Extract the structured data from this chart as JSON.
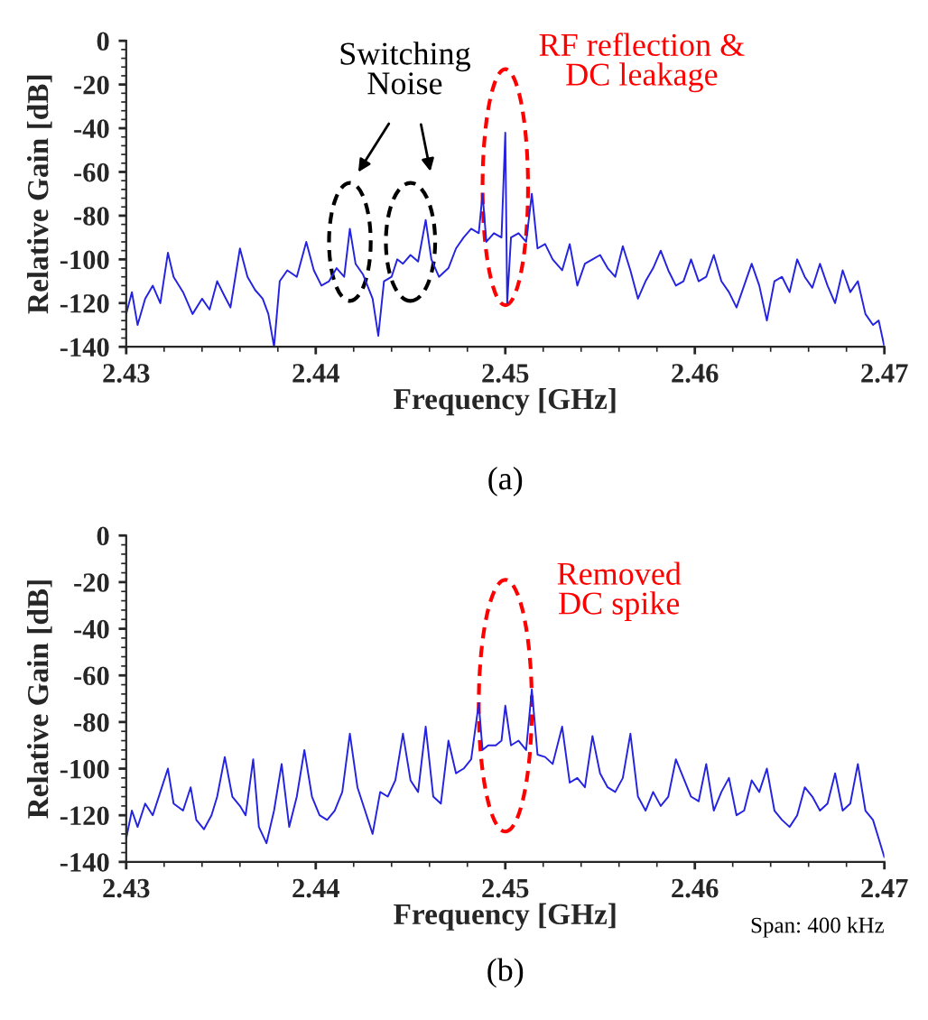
{
  "chart_data": [
    {
      "type": "line",
      "xlabel": "Frequency [GHz]",
      "ylabel": "Relative Gain [dB]",
      "annotations": [
        "Switching\nNoise",
        "RF reflection &\nDC leakage",
        "(a)"
      ],
      "xlim": [
        2.43,
        2.47
      ],
      "ylim": [
        -140,
        0
      ],
      "xticks": [
        2.43,
        2.44,
        2.45,
        2.46,
        2.47
      ],
      "yticks": [
        0,
        -20,
        -40,
        -60,
        -80,
        -100,
        -120,
        -140
      ],
      "grid": false,
      "legend": false,
      "series": [
        {
          "color": "#2323e0",
          "x": [
            2.43,
            2.4303,
            2.4306,
            2.431,
            2.4314,
            2.4318,
            2.4322,
            2.4325,
            2.433,
            2.4335,
            2.434,
            2.4344,
            2.4348,
            2.4352,
            2.4355,
            2.436,
            2.4364,
            2.4368,
            2.4372,
            2.4375,
            2.4378,
            2.4381,
            2.4385,
            2.439,
            2.4395,
            2.4399,
            2.4403,
            2.4407,
            2.4411,
            2.4415,
            2.4418,
            2.4421,
            2.4425,
            2.443,
            2.4433,
            2.4436,
            2.444,
            2.4443,
            2.4446,
            2.445,
            2.4454,
            2.4458,
            2.4461,
            2.4465,
            2.447,
            2.4474,
            2.4478,
            2.4482,
            2.4486,
            2.4488,
            2.449,
            2.4494,
            2.4498,
            2.45,
            2.4501,
            2.4503,
            2.4507,
            2.4511,
            2.4514,
            2.4517,
            2.4521,
            2.4525,
            2.453,
            2.4534,
            2.4538,
            2.4542,
            2.4546,
            2.455,
            2.4554,
            2.4558,
            2.4562,
            2.4566,
            2.457,
            2.4574,
            2.4578,
            2.4582,
            2.4586,
            2.459,
            2.4594,
            2.4598,
            2.4602,
            2.4606,
            2.461,
            2.4614,
            2.4618,
            2.4622,
            2.4626,
            2.463,
            2.4634,
            2.4638,
            2.4642,
            2.4646,
            2.465,
            2.4654,
            2.4658,
            2.4662,
            2.4666,
            2.467,
            2.4674,
            2.4678,
            2.4682,
            2.4686,
            2.469,
            2.4694,
            2.4697,
            2.47
          ],
          "values": [
            -125,
            -115,
            -130,
            -118,
            -112,
            -120,
            -97,
            -108,
            -115,
            -125,
            -118,
            -123,
            -110,
            -117,
            -122,
            -95,
            -108,
            -114,
            -118,
            -125,
            -140,
            -110,
            -105,
            -108,
            -92,
            -105,
            -112,
            -110,
            -104,
            -108,
            -86,
            -102,
            -107,
            -118,
            -135,
            -110,
            -108,
            -100,
            -102,
            -98,
            -101,
            -82,
            -100,
            -108,
            -104,
            -95,
            -90,
            -86,
            -88,
            -70,
            -92,
            -88,
            -90,
            -42,
            -120,
            -90,
            -88,
            -92,
            -70,
            -95,
            -93,
            -100,
            -105,
            -93,
            -112,
            -102,
            -100,
            -98,
            -104,
            -108,
            -94,
            -105,
            -118,
            -110,
            -104,
            -96,
            -105,
            -112,
            -110,
            -100,
            -110,
            -108,
            -98,
            -110,
            -115,
            -122,
            -112,
            -102,
            -112,
            -128,
            -110,
            -108,
            -115,
            -100,
            -108,
            -113,
            -102,
            -112,
            -120,
            -105,
            -115,
            -110,
            -125,
            -130,
            -128,
            -140
          ]
        }
      ]
    },
    {
      "type": "line",
      "xlabel": "Frequency [GHz]",
      "ylabel": "Relative Gain [dB]",
      "annotations": [
        "Removed\nDC spike",
        "Span: 400 kHz",
        "(b)"
      ],
      "xlim": [
        2.43,
        2.47
      ],
      "ylim": [
        -140,
        0
      ],
      "xticks": [
        2.43,
        2.44,
        2.45,
        2.46,
        2.47
      ],
      "yticks": [
        0,
        -20,
        -40,
        -60,
        -80,
        -100,
        -120,
        -140
      ],
      "grid": false,
      "legend": false,
      "series": [
        {
          "color": "#2323e0",
          "x": [
            2.43,
            2.4303,
            2.4306,
            2.431,
            2.4314,
            2.4318,
            2.4322,
            2.4325,
            2.433,
            2.4334,
            2.4337,
            2.4341,
            2.4345,
            2.4348,
            2.4352,
            2.4356,
            2.436,
            2.4363,
            2.4367,
            2.437,
            2.4374,
            2.4378,
            2.4382,
            2.4386,
            2.439,
            2.4394,
            2.4398,
            2.4402,
            2.4406,
            2.441,
            2.4414,
            2.4418,
            2.4422,
            2.4426,
            2.443,
            2.4434,
            2.4438,
            2.4442,
            2.4446,
            2.445,
            2.4454,
            2.4458,
            2.4462,
            2.4466,
            2.447,
            2.4474,
            2.4478,
            2.4482,
            2.4486,
            2.4488,
            2.4491,
            2.4495,
            2.4498,
            2.45,
            2.4503,
            2.4507,
            2.4511,
            2.4514,
            2.4517,
            2.4521,
            2.4525,
            2.453,
            2.4534,
            2.4538,
            2.4542,
            2.4546,
            2.455,
            2.4554,
            2.4558,
            2.4562,
            2.4566,
            2.457,
            2.4574,
            2.4578,
            2.4582,
            2.4586,
            2.459,
            2.4594,
            2.4598,
            2.4602,
            2.4606,
            2.461,
            2.4614,
            2.4618,
            2.4622,
            2.4626,
            2.463,
            2.4634,
            2.4638,
            2.4642,
            2.4646,
            2.465,
            2.4654,
            2.4658,
            2.4662,
            2.4666,
            2.467,
            2.4674,
            2.4678,
            2.4682,
            2.4686,
            2.469,
            2.4694,
            2.4697,
            2.47
          ],
          "values": [
            -130,
            -118,
            -125,
            -115,
            -120,
            -110,
            -100,
            -115,
            -118,
            -108,
            -122,
            -126,
            -120,
            -112,
            -95,
            -112,
            -116,
            -120,
            -96,
            -125,
            -132,
            -118,
            -98,
            -125,
            -112,
            -92,
            -112,
            -120,
            -122,
            -118,
            -110,
            -85,
            -108,
            -118,
            -128,
            -110,
            -112,
            -105,
            -85,
            -105,
            -110,
            -82,
            -112,
            -115,
            -88,
            -102,
            -100,
            -96,
            -72,
            -92,
            -90,
            -90,
            -88,
            -73,
            -90,
            -88,
            -92,
            -66,
            -94,
            -95,
            -98,
            -82,
            -106,
            -104,
            -108,
            -86,
            -102,
            -108,
            -110,
            -104,
            -85,
            -112,
            -118,
            -110,
            -116,
            -112,
            -96,
            -104,
            -112,
            -114,
            -98,
            -118,
            -110,
            -104,
            -120,
            -118,
            -105,
            -110,
            -100,
            -118,
            -122,
            -125,
            -120,
            -108,
            -112,
            -118,
            -115,
            -102,
            -118,
            -115,
            -98,
            -118,
            -122,
            -130,
            -138
          ]
        }
      ]
    }
  ]
}
